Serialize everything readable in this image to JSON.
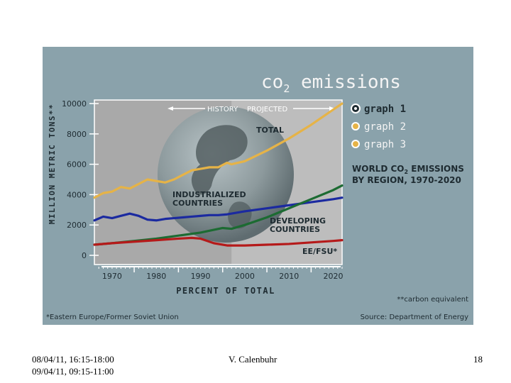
{
  "chart_data": {
    "type": "line",
    "title": "co2 emissions",
    "title_main": "co",
    "title_sub": "2",
    "title_rest": " emissions",
    "subtitle_line1": "WORLD CO",
    "subtitle_sub": "2",
    "subtitle_line1_rest": " EMISSIONS",
    "subtitle_line2": "BY REGION, 1970-2020",
    "ylabel": "MILLION METRIC TONS**",
    "xlabel": "PERCENT OF TOTAL",
    "history_label": "HISTORY",
    "projected_label": "PROJECTED",
    "yticks": [
      0,
      2000,
      4000,
      6000,
      8000,
      10000
    ],
    "ytick_labels": [
      "0",
      "2000",
      "4000",
      "6000",
      "8000",
      "10000"
    ],
    "xticks": [
      1970,
      1980,
      1990,
      2000,
      2010,
      2020
    ],
    "xtick_labels": [
      "1970",
      "1980",
      "1990",
      "2000",
      "2010",
      "2020"
    ],
    "xlim": [
      1966,
      2022
    ],
    "ylim": [
      0,
      10000
    ],
    "projection_start": 1997,
    "legend": [
      "graph 1",
      "graph 2",
      "graph 3"
    ],
    "footnote_left": "*Eastern Europe/Former Soviet Union",
    "footnote_right_1": "**carbon equivalent",
    "footnote_right_2": "Source: Department of Energy",
    "series": [
      {
        "name": "TOTAL",
        "color": "#e6b347",
        "x": [
          1966,
          1968,
          1970,
          1972,
          1974,
          1976,
          1978,
          1980,
          1982,
          1984,
          1986,
          1988,
          1990,
          1992,
          1994,
          1996,
          1997,
          2000,
          2005,
          2010,
          2015,
          2020,
          2022
        ],
        "y": [
          3800,
          4100,
          4200,
          4500,
          4400,
          4700,
          5000,
          4900,
          4800,
          5000,
          5300,
          5600,
          5700,
          5800,
          5800,
          6100,
          6000,
          6200,
          6900,
          7700,
          8600,
          9600,
          10000
        ]
      },
      {
        "name": "INDUSTRIALIZED COUNTRIES",
        "color": "#1b2aa0",
        "x": [
          1966,
          1968,
          1970,
          1972,
          1974,
          1976,
          1978,
          1980,
          1982,
          1984,
          1986,
          1988,
          1990,
          1992,
          1994,
          1996,
          1998,
          2000,
          2005,
          2010,
          2015,
          2020,
          2022
        ],
        "y": [
          2300,
          2550,
          2450,
          2600,
          2750,
          2600,
          2350,
          2300,
          2400,
          2450,
          2500,
          2550,
          2600,
          2650,
          2650,
          2700,
          2800,
          2900,
          3100,
          3300,
          3500,
          3700,
          3800
        ]
      },
      {
        "name": "DEVELOPING COUNTRIES",
        "color": "#1c6b32",
        "x": [
          1966,
          1970,
          1975,
          1980,
          1985,
          1990,
          1995,
          1997,
          2000,
          2005,
          2010,
          2015,
          2020,
          2022
        ],
        "y": [
          700,
          800,
          950,
          1100,
          1300,
          1500,
          1800,
          1750,
          2000,
          2500,
          3100,
          3700,
          4300,
          4600
        ]
      },
      {
        "name": "EE/FSU*",
        "color": "#b51a1a",
        "x": [
          1966,
          1970,
          1975,
          1980,
          1985,
          1988,
          1990,
          1993,
          1996,
          1997,
          2000,
          2005,
          2010,
          2015,
          2020,
          2022
        ],
        "y": [
          700,
          800,
          900,
          1000,
          1100,
          1150,
          1100,
          800,
          650,
          650,
          650,
          700,
          750,
          850,
          950,
          1000
        ]
      }
    ]
  },
  "footer": {
    "dates_line1": "08/04/11, 16:15-18:00",
    "dates_line2": "09/04/11, 09:15-11:00",
    "author": "V. Calenbuhr",
    "page_number": "18"
  }
}
